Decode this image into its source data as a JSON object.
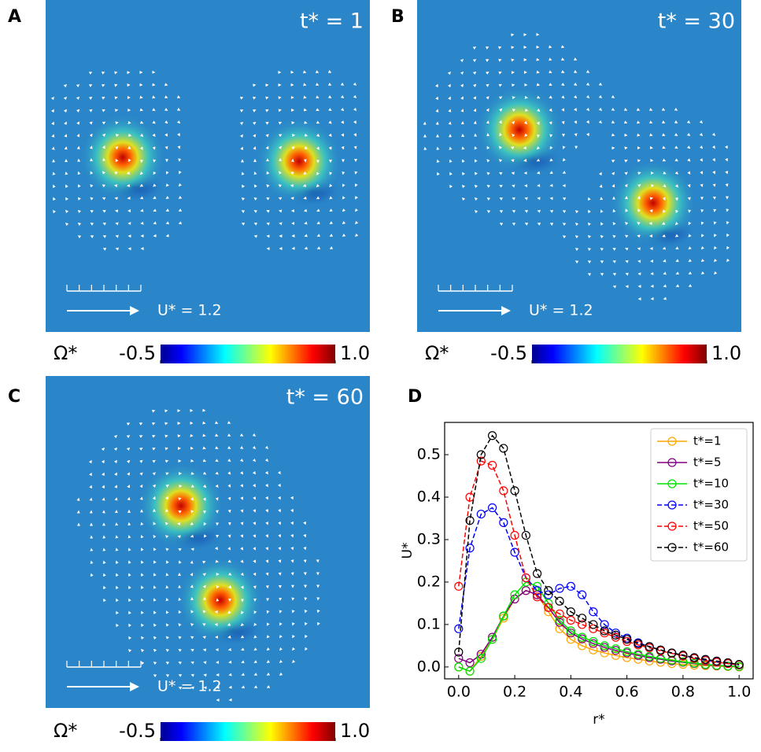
{
  "panels": [
    {
      "label": "A",
      "time": "t* = 1",
      "scale": "U* = 1.2",
      "colorbar": {
        "symbol": "Ω*",
        "ticks": [
          -0.5,
          {
            "value": 1,
            "label": "1.0"
          }
        ]
      }
    },
    {
      "label": "B",
      "time": "t* = 30",
      "scale": "U* = 1.2",
      "colorbar": {
        "symbol": "Ω*",
        "ticks": [
          -0.5,
          {
            "value": 1,
            "label": "1.0"
          }
        ]
      }
    },
    {
      "label": "C",
      "time": "t* = 60",
      "scale": "U* = 1.2",
      "colorbar": {
        "symbol": "Ω*",
        "ticks": [
          -0.5,
          {
            "value": 1,
            "label": "1.0"
          }
        ]
      }
    }
  ],
  "chart_data": {
    "type": "line",
    "label": "D",
    "x_label": "r*",
    "y_label": "U*",
    "x": [
      0,
      0.04,
      0.08,
      0.12,
      0.16,
      0.2,
      0.24,
      0.28,
      0.32,
      0.36,
      0.4,
      0.44,
      0.48,
      0.52,
      0.56,
      0.6,
      0.64,
      0.68,
      0.72,
      0.76,
      0.8,
      0.84,
      0.88,
      0.92,
      0.96,
      1
    ],
    "series": [
      {
        "name": "t*=1",
        "color": "#ffa500",
        "linestyle": "solid",
        "values": [
          0.0,
          -0.01,
          0.025,
          0.065,
          0.115,
          0.16,
          0.18,
          0.17,
          0.13,
          0.09,
          0.065,
          0.05,
          0.04,
          0.033,
          0.027,
          0.022,
          0.018,
          0.014,
          0.011,
          0.008,
          0.006,
          0.004,
          0.003,
          0.002,
          0.001,
          0.0
        ]
      },
      {
        "name": "t*=5",
        "color": "#800080",
        "linestyle": "solid",
        "values": [
          0.02,
          0.01,
          0.03,
          0.07,
          0.12,
          0.16,
          0.18,
          0.17,
          0.14,
          0.105,
          0.08,
          0.066,
          0.055,
          0.046,
          0.039,
          0.033,
          0.027,
          0.022,
          0.018,
          0.014,
          0.011,
          0.008,
          0.005,
          0.003,
          0.002,
          0.001
        ]
      },
      {
        "name": "t*=10",
        "color": "#00e000",
        "linestyle": "solid",
        "values": [
          0.0,
          -0.01,
          0.02,
          0.065,
          0.12,
          0.17,
          0.2,
          0.19,
          0.15,
          0.11,
          0.085,
          0.07,
          0.06,
          0.05,
          0.043,
          0.036,
          0.03,
          0.025,
          0.02,
          0.016,
          0.012,
          0.009,
          0.006,
          0.004,
          0.002,
          0.001
        ]
      },
      {
        "name": "t*=30",
        "color": "#0000ff",
        "linestyle": "dashed",
        "values": [
          0.09,
          0.28,
          0.36,
          0.375,
          0.34,
          0.27,
          0.21,
          0.18,
          0.17,
          0.185,
          0.19,
          0.17,
          0.13,
          0.1,
          0.08,
          0.068,
          0.057,
          0.048,
          0.04,
          0.033,
          0.027,
          0.021,
          0.016,
          0.012,
          0.008,
          0.005
        ]
      },
      {
        "name": "t*=50",
        "color": "#ff0000",
        "linestyle": "dashed",
        "values": [
          0.19,
          0.4,
          0.485,
          0.475,
          0.415,
          0.31,
          0.21,
          0.165,
          0.14,
          0.125,
          0.11,
          0.1,
          0.09,
          0.08,
          0.07,
          0.06,
          0.052,
          0.045,
          0.038,
          0.032,
          0.026,
          0.02,
          0.015,
          0.011,
          0.008,
          0.005
        ]
      },
      {
        "name": "t*=60",
        "color": "#000000",
        "linestyle": "dashed",
        "values": [
          0.035,
          0.345,
          0.5,
          0.545,
          0.515,
          0.415,
          0.31,
          0.22,
          0.18,
          0.155,
          0.13,
          0.115,
          0.1,
          0.085,
          0.075,
          0.065,
          0.055,
          0.048,
          0.04,
          0.033,
          0.028,
          0.022,
          0.018,
          0.014,
          0.01,
          0.006
        ]
      }
    ],
    "xlim": [
      -0.05,
      1.05
    ],
    "ylim": [
      -0.028,
      0.576
    ],
    "xticks": [
      {
        "value": 0,
        "label": "0.0"
      },
      0.2,
      0.4,
      0.6,
      0.8,
      {
        "value": 1,
        "label": "1.0"
      }
    ],
    "yticks": [
      {
        "value": 0,
        "label": "0.0"
      },
      0.1,
      0.2,
      0.3,
      0.4,
      0.5
    ],
    "legend": "upper right",
    "grid": false
  }
}
